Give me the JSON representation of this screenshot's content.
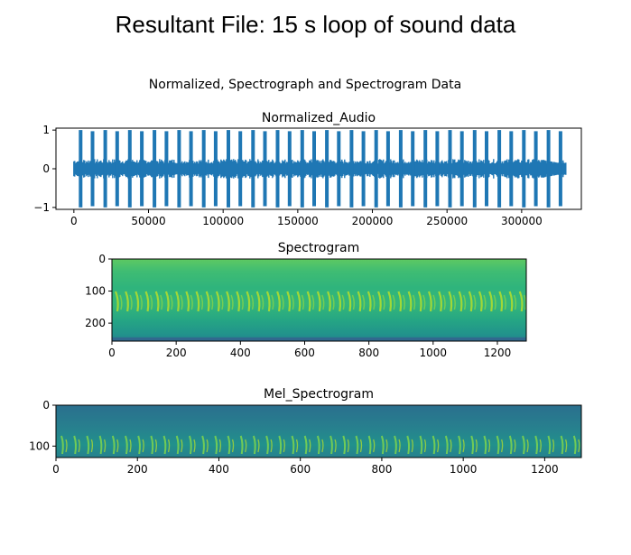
{
  "slide": {
    "title": "Resultant File: 15 s loop of sound data"
  },
  "figure": {
    "suptitle": "Normalized, Spectrograph and Spectrogram Data"
  },
  "chart_data": [
    {
      "type": "line",
      "title": "Normalized_Audio",
      "color": "#1f77b4",
      "xlim": [
        -12000,
        340000
      ],
      "ylim": [
        -1.05,
        1.05
      ],
      "xticks": [
        0,
        50000,
        100000,
        150000,
        200000,
        250000,
        300000
      ],
      "xtick_labels": [
        "0",
        "50000",
        "100000",
        "150000",
        "200000",
        "250000",
        "300000"
      ],
      "yticks": [
        1,
        0,
        -1
      ],
      "ytick_labels": [
        "1",
        "0",
        "−1"
      ],
      "series": [
        {
          "x": [
            0,
            330000
          ],
          "baseline_amplitude": 0.25,
          "burst_amplitude": 1.0,
          "burst_centers": [
            4500,
            12500,
            21000,
            29000,
            37500,
            45500,
            54000,
            62000,
            70500,
            78500,
            87000,
            95000,
            103500,
            111500,
            120000,
            128000,
            136500,
            144500,
            153000,
            161000,
            169500,
            177500,
            186000,
            194000,
            202500,
            210500,
            219000,
            227000,
            235500,
            243500,
            252000,
            260000,
            268500,
            276500,
            285000,
            293000,
            301500,
            309500,
            318000,
            326000
          ]
        }
      ]
    },
    {
      "type": "heatmap",
      "title": "Spectrogram",
      "colormap": "viridis",
      "xlim": [
        0,
        1290
      ],
      "ylim": [
        256,
        0
      ],
      "xticks": [
        0,
        200,
        400,
        600,
        800,
        1000,
        1200
      ],
      "xtick_labels": [
        "0",
        "200",
        "400",
        "600",
        "800",
        "1000",
        "1200"
      ],
      "yticks": [
        0,
        100,
        200
      ],
      "ytick_labels": [
        "0",
        "100",
        "200"
      ]
    },
    {
      "type": "heatmap",
      "title": "Mel_Spectrogram",
      "colormap": "viridis",
      "xlim": [
        0,
        1290
      ],
      "ylim": [
        128,
        0
      ],
      "xticks": [
        0,
        200,
        400,
        600,
        800,
        1000,
        1200
      ],
      "xtick_labels": [
        "0",
        "200",
        "400",
        "600",
        "800",
        "1000",
        "1200"
      ],
      "yticks": [
        0,
        100
      ],
      "ytick_labels": [
        "0",
        "100"
      ]
    }
  ]
}
